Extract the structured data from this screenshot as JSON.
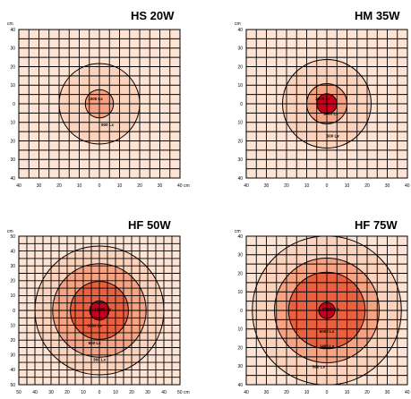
{
  "chart_data": [
    {
      "type": "heatmap",
      "title": "HS 20W",
      "xunit": "cm",
      "yunit": "cm",
      "xlim": [
        -40,
        40
      ],
      "ylim": [
        -40,
        40
      ],
      "xticks": [
        "40",
        "30",
        "20",
        "10",
        "0",
        "10",
        "20",
        "30",
        "40 cm"
      ],
      "yticks": [
        "40",
        "30",
        "20",
        "10",
        "0",
        "10",
        "20",
        "30",
        "40"
      ],
      "grid": true,
      "series": [
        {
          "label": "1000 Lx",
          "radius": 7
        },
        {
          "label": "500 Lx",
          "radius": 20
        }
      ],
      "colors": [
        "#fce3d4",
        "#fbd3bd",
        "#f5a383",
        "#e8603f",
        "#c8001e"
      ]
    },
    {
      "type": "heatmap",
      "title": "HM 35W",
      "xunit": "cm",
      "yunit": "cm",
      "xlim": [
        -40,
        40
      ],
      "ylim": [
        -40,
        40
      ],
      "xticks": [
        "40",
        "30",
        "20",
        "10",
        "0",
        "10",
        "20",
        "30",
        "40 cr"
      ],
      "yticks": [
        "40",
        "30",
        "20",
        "10",
        "0",
        "10",
        "20",
        "30",
        "40"
      ],
      "grid": true,
      "series": [
        {
          "label": "2000 Lx",
          "radius": 5
        },
        {
          "label": "1000 Lx",
          "radius": 10
        },
        {
          "label": "500 Lx",
          "radius": 22
        }
      ],
      "colors": [
        "#fce3d4",
        "#fbd3bd",
        "#f5a383",
        "#e8603f",
        "#c8001e"
      ]
    },
    {
      "type": "heatmap",
      "title": "HF 50W",
      "xunit": "cm",
      "yunit": "cm",
      "xlim": [
        -50,
        50
      ],
      "ylim": [
        -50,
        50
      ],
      "xticks": [
        "50",
        "40",
        "30",
        "20",
        "10",
        "0",
        "10",
        "20",
        "30",
        "40",
        "50 cm"
      ],
      "yticks": [
        "50",
        "40",
        "30",
        "20",
        "10",
        "0",
        "10",
        "20",
        "30",
        "40",
        "50"
      ],
      "grid": true,
      "series": [
        {
          "label": "17000 Lx",
          "radius": 6
        },
        {
          "label": "3600 Lx",
          "radius": 18
        },
        {
          "label": "900 Lx",
          "radius": 29
        },
        {
          "label": "360 Lx",
          "radius": 40
        }
      ],
      "colors": [
        "#fce3d4",
        "#fbd3bd",
        "#f5a383",
        "#e8603f",
        "#c8001e"
      ]
    },
    {
      "type": "heatmap",
      "title": "HF 75W",
      "xunit": "cm",
      "yunit": "cm",
      "xlim": [
        -40,
        40
      ],
      "ylim": [
        -40,
        40
      ],
      "xticks": [
        "40",
        "30",
        "20",
        "10",
        "0",
        "10",
        "20",
        "30",
        "40 cr"
      ],
      "yticks": [
        "40",
        "30",
        "20",
        "10",
        "0",
        "10",
        "20",
        "30",
        "40"
      ],
      "grid": true,
      "series": [
        {
          "label": "27000 Lx",
          "radius": 4
        },
        {
          "label": "6000 Lx",
          "radius": 19
        },
        {
          "label": "1400 Lx",
          "radius": 26
        },
        {
          "label": "500 Lx",
          "radius": 37
        }
      ],
      "colors": [
        "#fce3d4",
        "#fbd3bd",
        "#f5a383",
        "#e8603f",
        "#c8001e"
      ]
    }
  ]
}
